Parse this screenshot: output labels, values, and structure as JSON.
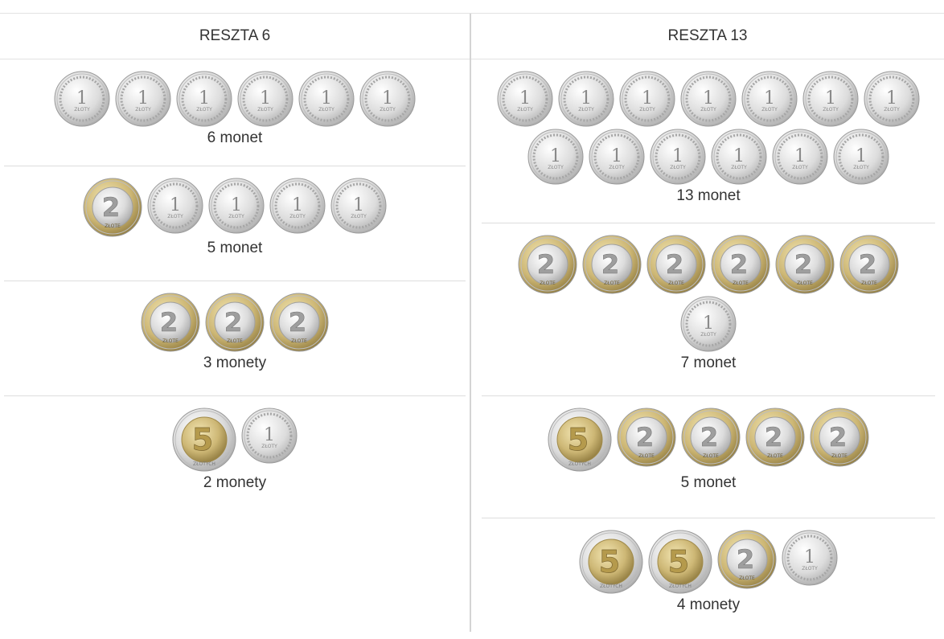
{
  "columns": [
    {
      "title": "RESZTA 6",
      "options": [
        {
          "label": "6 monet",
          "rows": [
            [
              "1",
              "1",
              "1",
              "1",
              "1",
              "1"
            ]
          ],
          "height": 133
        },
        {
          "label": "5 monet",
          "rows": [
            [
              "2",
              "1",
              "1",
              "1",
              "1"
            ]
          ],
          "height": 143
        },
        {
          "label": "3 monety",
          "rows": [
            [
              "2",
              "2",
              "2"
            ]
          ],
          "height": 143
        },
        {
          "label": "2 monety",
          "rows": [
            [
              "5",
              "1"
            ]
          ],
          "height": 150
        }
      ]
    },
    {
      "title": "RESZTA 13",
      "options": [
        {
          "label": "13 monet",
          "rows": [
            [
              "1",
              "1",
              "1",
              "1",
              "1",
              "1",
              "1"
            ],
            [
              "1",
              "1",
              "1",
              "1",
              "1",
              "1"
            ]
          ],
          "height": 204
        },
        {
          "label": "7 monet",
          "rows": [
            [
              "2",
              "2",
              "2",
              "2",
              "2",
              "2"
            ],
            [
              "1"
            ]
          ],
          "height": 215
        },
        {
          "label": "5 monet",
          "rows": [
            [
              "5",
              "2",
              "2",
              "2",
              "2"
            ]
          ],
          "height": 152
        },
        {
          "label": "4 monety",
          "rows": [
            [
              "5",
              "5",
              "2",
              "1"
            ]
          ],
          "height": 150
        }
      ]
    }
  ],
  "coin_text": {
    "one_zloty": "1",
    "two_zloty": "2",
    "five_zloty": "5",
    "currency_small": "ZŁOTY",
    "currency_2": "ZŁOTE",
    "currency_5": "ZŁOTYCH"
  },
  "colors": {
    "silver": "#d9d9d9",
    "gold": "#c9b36a",
    "border": "#dddddd",
    "text": "#333333"
  }
}
